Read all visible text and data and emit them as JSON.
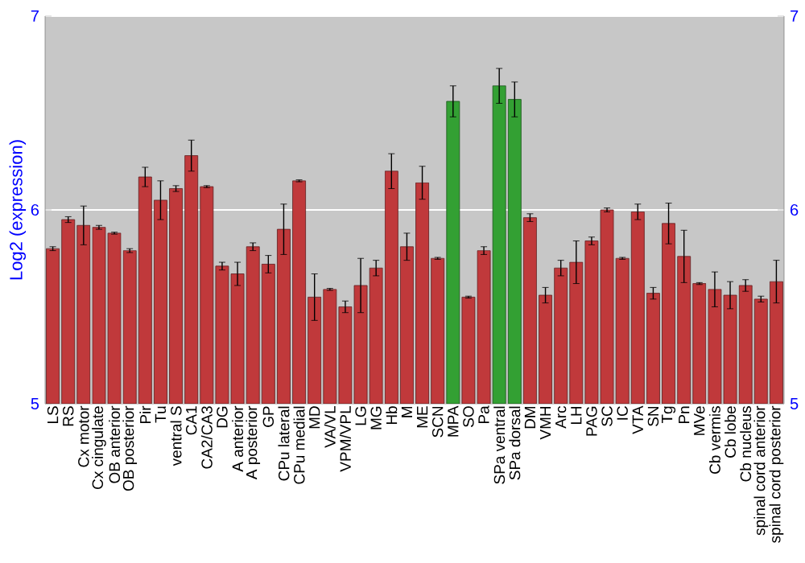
{
  "chart_data": {
    "type": "bar",
    "ylabel": "Log2 (expression)",
    "categories": [
      "LS",
      "RS",
      "Cx motor",
      "Cx cingulate",
      "OB anterior",
      "OB posterior",
      "Pir",
      "Tu",
      "ventral S",
      "CA1",
      "CA2/CA3",
      "DG",
      "A anterior",
      "A posterior",
      "GP",
      "CPu lateral",
      "CPu medial",
      "MD",
      "VA/VL",
      "VPM/VPL",
      "LG",
      "MG",
      "Hb",
      "M",
      "ME",
      "SCN",
      "MPA",
      "SO",
      "Pa",
      "SPa ventral",
      "SPa dorsal",
      "DM",
      "VMH",
      "Arc",
      "LH",
      "PAG",
      "SC",
      "IC",
      "VTA",
      "SN",
      "Tg",
      "Pn",
      "MVe",
      "Cb vermis",
      "Cb lobe",
      "Cb nucleus",
      "spinal cord anterior",
      "spinal cord posterior"
    ],
    "values": [
      5.8,
      5.95,
      5.92,
      5.91,
      5.88,
      5.79,
      6.17,
      6.05,
      6.11,
      6.28,
      6.12,
      5.71,
      5.67,
      5.81,
      5.72,
      5.9,
      6.15,
      5.55,
      5.59,
      5.5,
      5.61,
      5.7,
      6.2,
      5.81,
      6.14,
      5.75,
      6.56,
      5.55,
      5.79,
      6.64,
      6.57,
      5.96,
      5.56,
      5.7,
      5.73,
      5.84,
      6.0,
      5.75,
      5.99,
      5.57,
      5.93,
      5.76,
      5.62,
      5.59,
      5.56,
      5.61,
      5.54,
      5.63
    ],
    "errors": [
      0.01,
      0.015,
      0.1,
      0.01,
      0.005,
      0.01,
      0.05,
      0.1,
      0.015,
      0.08,
      0.005,
      0.02,
      0.06,
      0.02,
      0.045,
      0.13,
      0.005,
      0.12,
      0.005,
      0.03,
      0.14,
      0.04,
      0.09,
      0.07,
      0.085,
      0.005,
      0.08,
      0.005,
      0.02,
      0.09,
      0.09,
      0.02,
      0.04,
      0.04,
      0.11,
      0.02,
      0.01,
      0.005,
      0.04,
      0.03,
      0.105,
      0.135,
      0.005,
      0.09,
      0.07,
      0.03,
      0.015,
      0.11
    ],
    "colors": [
      "#c0393b",
      "#c0393b",
      "#c0393b",
      "#c0393b",
      "#c0393b",
      "#c0393b",
      "#c0393b",
      "#c0393b",
      "#c0393b",
      "#c0393b",
      "#c0393b",
      "#c0393b",
      "#c0393b",
      "#c0393b",
      "#c0393b",
      "#c0393b",
      "#c0393b",
      "#c0393b",
      "#c0393b",
      "#c0393b",
      "#c0393b",
      "#c0393b",
      "#c0393b",
      "#c0393b",
      "#c0393b",
      "#c0393b",
      "#33a033",
      "#c0393b",
      "#c0393b",
      "#33a033",
      "#33a033",
      "#c0393b",
      "#c0393b",
      "#c0393b",
      "#c0393b",
      "#c0393b",
      "#c0393b",
      "#c0393b",
      "#c0393b",
      "#c0393b",
      "#c0393b",
      "#c0393b",
      "#c0393b",
      "#c0393b",
      "#c0393b",
      "#c0393b",
      "#c0393b",
      "#c0393b"
    ],
    "ylim": [
      5,
      7
    ],
    "yticks": [
      5,
      6,
      7
    ],
    "y2lim": [
      5,
      7
    ],
    "y2ticks": [
      5,
      6,
      7
    ],
    "grid": "y"
  }
}
